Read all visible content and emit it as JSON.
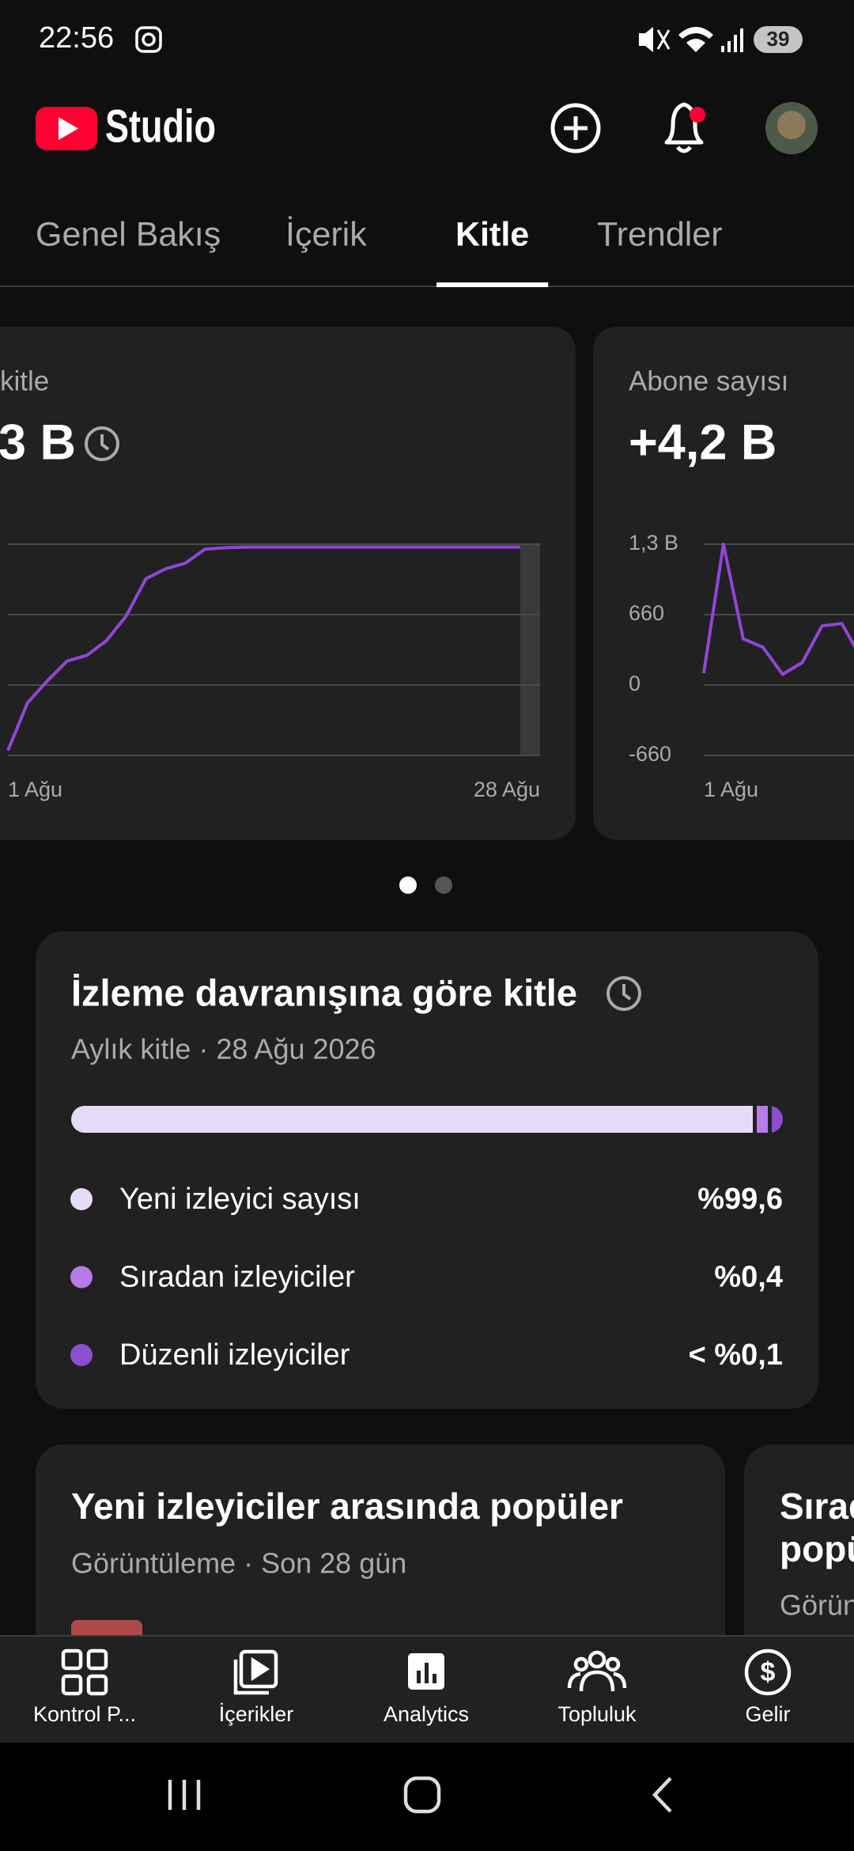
{
  "status_bar": {
    "time": "22:56",
    "battery": "39"
  },
  "header": {
    "app_name": "Studio"
  },
  "tabs": {
    "items": [
      "Genel Bakış",
      "İçerik",
      "Kitle",
      "Trendler"
    ],
    "selected": 2
  },
  "metric_cards": [
    {
      "label": "kitle",
      "value": "3 B",
      "chart": {
        "type": "line",
        "color": "#9146d6",
        "x": [
          1,
          2,
          3,
          4,
          5,
          6,
          7,
          8,
          9,
          10,
          11,
          12,
          13,
          14,
          15,
          16,
          17,
          18,
          19,
          20,
          21,
          22,
          23,
          24,
          25,
          26,
          27
        ],
        "values": [
          70,
          750,
          1060,
          1340,
          1420,
          1630,
          1980,
          2510,
          2650,
          2730,
          2930,
          2950,
          2960,
          2960,
          2960,
          2960,
          2960,
          2960,
          2960,
          2960,
          2960,
          2960,
          2960,
          2960,
          2960,
          2960,
          2960
        ],
        "xlim": [
          1,
          28
        ],
        "ylim": [
          0,
          3000
        ],
        "x_labels": [
          "1 Ağu",
          "28 Ağu"
        ]
      }
    },
    {
      "label": "Abone sayısı",
      "value": "+4,2 B",
      "chart": {
        "type": "line",
        "color": "#9146d6",
        "x": [
          1,
          2,
          3,
          4,
          5,
          6,
          7,
          8,
          9
        ],
        "values": [
          111,
          1320,
          433,
          355,
          100,
          211,
          555,
          577,
          250
        ],
        "xlim": [
          1,
          28
        ],
        "ylim": [
          -660,
          1320
        ],
        "yticks": [
          {
            "value": 1320,
            "label": "1,3 B"
          },
          660,
          0,
          -660
        ],
        "x_labels": [
          "1 Ağu"
        ]
      }
    }
  ],
  "behavior_card": {
    "title": "İzleme davranışına göre kitle",
    "subtitle": "Aylık kitle · 28 Ağu 2026",
    "chart": {
      "type": "stacked_bar",
      "series": [
        {
          "name": "Yeni izleyici sayısı",
          "color": "#e8dbf6",
          "values": [
            99.6
          ],
          "value_labels": [
            "%99,6"
          ]
        },
        {
          "name": "Sıradan izleyiciler",
          "color": "#b77ce8",
          "values": [
            0.4
          ],
          "value_labels": [
            "%0,4"
          ]
        },
        {
          "name": "Düzenli izleyiciler",
          "color": "#8c4fd0",
          "values": [
            0.1
          ],
          "value_labels": [
            "< %0,1"
          ]
        }
      ]
    }
  },
  "popular_cards": [
    {
      "title": "Yeni izleyiciler arasında popüler",
      "subtitle": "Görüntüleme · Son 28 gün"
    },
    {
      "title_lines": [
        "Sırad",
        "popü"
      ],
      "subtitle": "Görün"
    }
  ],
  "bottom_nav": [
    "Kontrol P...",
    "İçerikler",
    "Analytics",
    "Topluluk",
    "Gelir"
  ]
}
